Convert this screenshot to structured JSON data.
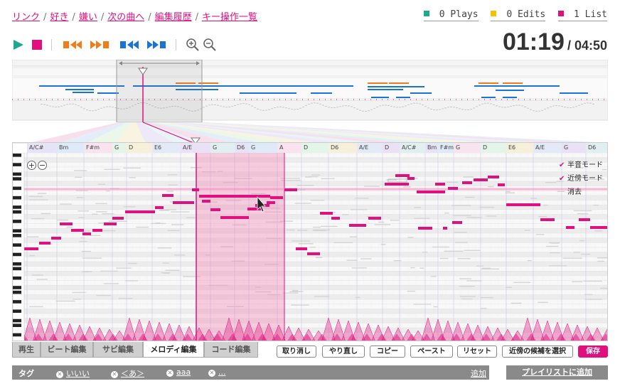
{
  "nav": {
    "links": [
      "リンク",
      "好き",
      "嫌い",
      "次の曲へ",
      "編集履歴",
      "キー操作一覧"
    ],
    "sep": "/"
  },
  "stats": {
    "plays": "0 Plays",
    "edits": "0 Edits",
    "lists": "1 List",
    "colors": {
      "plays": "#1aaa8e",
      "edits": "#f5c200",
      "lists": "#e0117f"
    }
  },
  "player": {
    "current_time": "01:19",
    "total_time": "/ 04:50",
    "icons": [
      "play-icon",
      "stop-icon",
      "prev-beat-icon",
      "next-beat-icon",
      "prev-chorus-icon",
      "next-chorus-icon",
      "zoom-in-icon",
      "zoom-out-icon"
    ]
  },
  "colors": {
    "accent": "#e0117f",
    "beat": "#f07d1a",
    "chorus": "#1a73d6",
    "play": "#1aaa8e"
  },
  "chords": [
    "A/C#",
    "Bm",
    "F#m",
    "G",
    "D",
    "E6",
    "A/E",
    "G",
    "D6",
    "G",
    "A",
    "D",
    "D6",
    "A/E",
    "D",
    "A/C#",
    "Bm",
    "F#m",
    "G",
    "D",
    "E6",
    "A/E",
    "G",
    "D6"
  ],
  "editor": {
    "zoom_in": "+",
    "zoom_out": "−",
    "modes": [
      {
        "label": "半音モード",
        "checked": true
      },
      {
        "label": "近傍モード",
        "checked": true
      },
      {
        "label": "消去",
        "checked": false
      }
    ]
  },
  "tabs": [
    {
      "label": "再生",
      "active": false
    },
    {
      "label": "ビート編集",
      "active": false
    },
    {
      "label": "サビ編集",
      "active": false
    },
    {
      "label": "メロディ編集",
      "active": true
    },
    {
      "label": "コード編集",
      "active": false
    }
  ],
  "actions": [
    "取り消し",
    "やり直し",
    "コピー",
    "ペースト",
    "リセット",
    "近傍の候補を選択",
    "保存"
  ],
  "tagbar": {
    "label": "タグ",
    "tags": [
      "いいい",
      "＜あ＞",
      "aaa",
      "..."
    ],
    "add": "追加"
  },
  "playlist_button": "プレイリストに追加"
}
